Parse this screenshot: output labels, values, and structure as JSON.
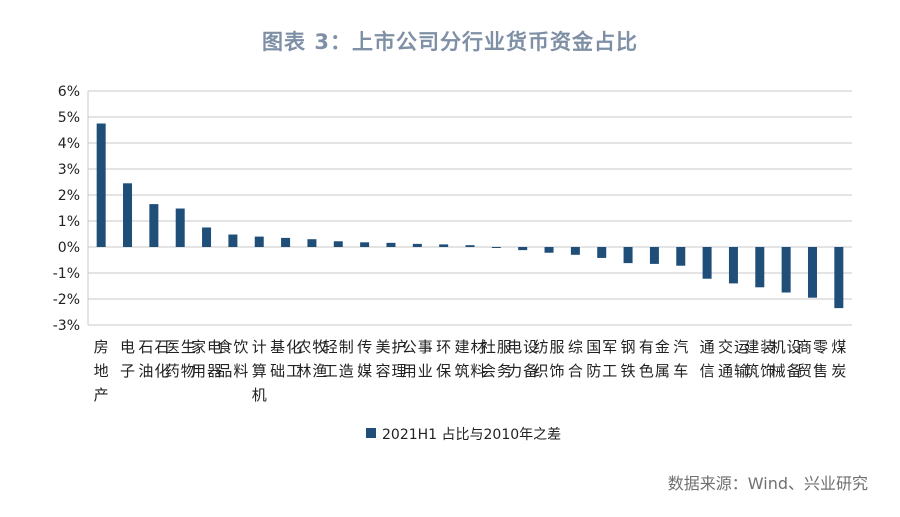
{
  "title": "图表 3：上市公司分行业货币资金占比",
  "source": "数据来源：Wind、兴业研究",
  "colors": {
    "bar": "#1f4e79",
    "grid": "#c8c8c8",
    "axis": "#404040",
    "title": "#7f8fa6"
  },
  "chart_data": {
    "type": "bar",
    "title": "图表 3：上市公司分行业货币资金占比",
    "xlabel": "",
    "ylabel": "",
    "ylim": [
      -3,
      6
    ],
    "yticks": [
      "6%",
      "5%",
      "4%",
      "3%",
      "2%",
      "1%",
      "0%",
      "-1%",
      "-2%",
      "-3%"
    ],
    "ytick_values": [
      6,
      5,
      4,
      3,
      2,
      1,
      0,
      -1,
      -2,
      -3
    ],
    "grid": true,
    "legend_position": "bottom-center",
    "categories": [
      "房地产",
      "电子",
      "石油石化",
      "医药生物",
      "家用电器",
      "食品饮料",
      "计算机",
      "基础化工",
      "农林牧渔",
      "轻工制造",
      "传媒",
      "美容护理",
      "公用事业",
      "环保",
      "建筑材料",
      "社会服务",
      "电力设备",
      "纺织服饰",
      "综合",
      "国防军工",
      "钢铁",
      "有色金属",
      "汽车",
      "通信",
      "交通运输",
      "建筑装饰",
      "机械设备",
      "商贸零售",
      "煤炭"
    ],
    "series": [
      {
        "name": "2021H1 占比与2010年之差",
        "values": [
          4.75,
          2.45,
          1.65,
          1.48,
          0.75,
          0.48,
          0.4,
          0.35,
          0.3,
          0.22,
          0.18,
          0.16,
          0.12,
          0.1,
          0.07,
          -0.03,
          -0.12,
          -0.22,
          -0.3,
          -0.42,
          -0.62,
          -0.65,
          -0.72,
          -1.22,
          -1.4,
          -1.55,
          -1.75,
          -1.95,
          -2.35
        ]
      }
    ]
  }
}
